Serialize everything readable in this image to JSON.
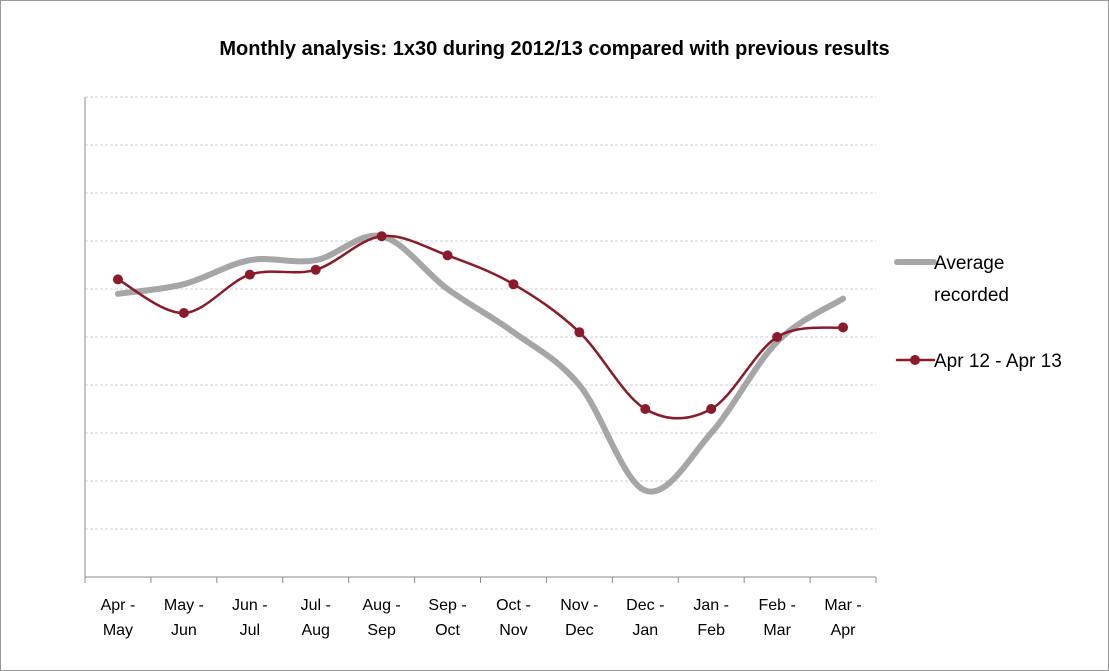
{
  "chart_data": {
    "type": "line",
    "title": "Monthly analysis: 1x30 during 2012/13 compared with previous results",
    "categories": [
      [
        "Apr -",
        "May"
      ],
      [
        "May -",
        "Jun"
      ],
      [
        "Jun -",
        "Jul"
      ],
      [
        "Jul -",
        "Aug"
      ],
      [
        "Aug -",
        "Sep"
      ],
      [
        "Sep -",
        "Oct"
      ],
      [
        "Oct -",
        "Nov"
      ],
      [
        "Nov -",
        "Dec"
      ],
      [
        "Dec -",
        "Jan"
      ],
      [
        "Jan -",
        "Feb"
      ],
      [
        "Feb -",
        "Mar"
      ],
      [
        "Mar -",
        "Apr"
      ]
    ],
    "ylim": [
      0,
      10
    ],
    "gridlines": 10,
    "grid": true,
    "y_tick_labels": false,
    "legend_position": "right",
    "series": [
      {
        "name": "Average recorded",
        "legend_lines": [
          "Average",
          "recorded"
        ],
        "color": "#a6a6a6",
        "markers": false,
        "smooth": true,
        "values": [
          5.9,
          6.1,
          6.6,
          6.6,
          7.1,
          6.0,
          5.1,
          4.0,
          1.8,
          3.0,
          4.9,
          5.8
        ]
      },
      {
        "name": "Apr 12 - Apr 13",
        "legend_lines": [
          "Apr 12 - Apr 13"
        ],
        "color": "#8b1a2b",
        "markers": true,
        "smooth": true,
        "values": [
          6.2,
          5.5,
          6.3,
          6.4,
          7.1,
          6.7,
          6.1,
          5.1,
          3.5,
          3.5,
          5.0,
          5.2
        ]
      }
    ]
  }
}
